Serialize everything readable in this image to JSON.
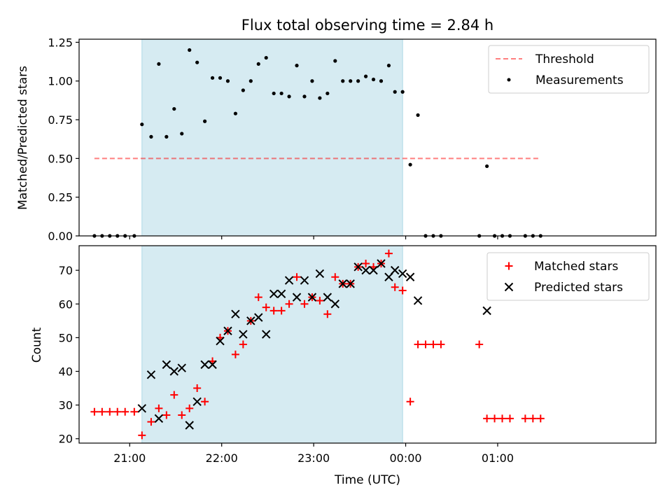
{
  "title": "Flux total observing time = 2.84 h",
  "colors": {
    "shade": "#add8e6",
    "threshold": "#ff0000",
    "matched": "#ff0000",
    "predicted": "#000000",
    "measurement": "#000000"
  },
  "chart_data": [
    {
      "type": "scatter",
      "ylabel": "Matched/Predicted stars",
      "ylim": [
        0,
        1.27
      ],
      "xlim_hours": [
        20.45,
        26.72
      ],
      "yticks": [
        0.0,
        0.25,
        0.5,
        0.75,
        1.0,
        1.25
      ],
      "ytick_labels": [
        "0.00",
        "0.25",
        "0.50",
        "0.75",
        "1.00",
        "1.25"
      ],
      "shaded_region": {
        "start": "21:08",
        "end": "23:58"
      },
      "legend": {
        "position": "top-right",
        "entries": [
          "Threshold",
          "Measurements"
        ]
      },
      "threshold": {
        "name": "Threshold",
        "y": 0.5,
        "x_start": "20:37",
        "x_end": "01:28",
        "style": "dashed"
      },
      "series": [
        {
          "name": "Measurements",
          "marker": "dot",
          "x": [
            "20:37",
            "20:42",
            "20:47",
            "20:52",
            "20:57",
            "21:03",
            "21:08",
            "21:14",
            "21:19",
            "21:24",
            "21:29",
            "21:34",
            "21:39",
            "21:44",
            "21:49",
            "21:54",
            "21:59",
            "22:04",
            "22:09",
            "22:14",
            "22:19",
            "22:24",
            "22:29",
            "22:34",
            "22:39",
            "22:44",
            "22:49",
            "22:54",
            "22:59",
            "23:04",
            "23:09",
            "23:14",
            "23:19",
            "23:24",
            "23:29",
            "23:34",
            "23:39",
            "23:44",
            "23:49",
            "23:53",
            "23:58",
            "00:03",
            "00:08",
            "00:13",
            "00:18",
            "00:23",
            "00:48",
            "00:53",
            "00:58",
            "01:03",
            "01:08",
            "01:18",
            "01:23",
            "01:28"
          ],
          "y": [
            0,
            0,
            0,
            0,
            0,
            0,
            0.72,
            0.64,
            1.11,
            0.64,
            0.82,
            0.66,
            1.2,
            1.12,
            0.74,
            1.02,
            1.02,
            1.0,
            0.79,
            0.94,
            1.0,
            1.11,
            1.15,
            0.92,
            0.92,
            0.9,
            1.1,
            0.9,
            1.0,
            0.89,
            0.92,
            1.13,
            1.0,
            1.0,
            1.0,
            1.03,
            1.01,
            1.0,
            1.1,
            0.93,
            0.93,
            0.46,
            0.78,
            0,
            0,
            0,
            0,
            0.45,
            0,
            0,
            0,
            0,
            0,
            0
          ]
        }
      ]
    },
    {
      "type": "scatter",
      "xlabel": "Time (UTC)",
      "ylabel": "Count",
      "ylim": [
        18.7,
        77.3
      ],
      "xlim_hours": [
        20.45,
        26.72
      ],
      "yticks": [
        20,
        30,
        40,
        50,
        60,
        70
      ],
      "xticks": [
        "21:00",
        "22:00",
        "23:00",
        "00:00",
        "01:00"
      ],
      "shaded_region": {
        "start": "21:08",
        "end": "23:58"
      },
      "legend": {
        "position": "top-right",
        "entries": [
          "Matched stars",
          "Predicted stars"
        ]
      },
      "series": [
        {
          "name": "Matched stars",
          "marker": "plus",
          "x": [
            "20:37",
            "20:42",
            "20:47",
            "20:52",
            "20:57",
            "21:03",
            "21:08",
            "21:14",
            "21:19",
            "21:24",
            "21:29",
            "21:34",
            "21:39",
            "21:44",
            "21:49",
            "21:54",
            "21:59",
            "22:04",
            "22:09",
            "22:14",
            "22:19",
            "22:24",
            "22:29",
            "22:34",
            "22:39",
            "22:44",
            "22:49",
            "22:54",
            "22:59",
            "23:04",
            "23:09",
            "23:14",
            "23:19",
            "23:24",
            "23:29",
            "23:34",
            "23:39",
            "23:44",
            "23:49",
            "23:53",
            "23:58",
            "00:03",
            "00:08",
            "00:13",
            "00:18",
            "00:23",
            "00:48",
            "00:53",
            "00:58",
            "01:03",
            "01:08",
            "01:18",
            "01:23",
            "01:28"
          ],
          "y": [
            28,
            28,
            28,
            28,
            28,
            28,
            21,
            25,
            29,
            27,
            33,
            27,
            29,
            35,
            31,
            43,
            50,
            52,
            45,
            48,
            55,
            62,
            59,
            58,
            58,
            60,
            68,
            60,
            62,
            61,
            57,
            68,
            66,
            66,
            71,
            72,
            71,
            72,
            75,
            65,
            64,
            31,
            48,
            48,
            48,
            48,
            48,
            26,
            26,
            26,
            26,
            26,
            26,
            26
          ]
        },
        {
          "name": "Predicted stars",
          "marker": "x",
          "x": [
            "21:08",
            "21:14",
            "21:19",
            "21:24",
            "21:29",
            "21:34",
            "21:39",
            "21:44",
            "21:49",
            "21:54",
            "21:59",
            "22:04",
            "22:09",
            "22:14",
            "22:19",
            "22:24",
            "22:29",
            "22:34",
            "22:39",
            "22:44",
            "22:49",
            "22:54",
            "22:59",
            "23:04",
            "23:09",
            "23:14",
            "23:19",
            "23:24",
            "23:29",
            "23:34",
            "23:39",
            "23:44",
            "23:49",
            "23:53",
            "23:58",
            "00:03",
            "00:08",
            "00:53"
          ],
          "y": [
            29,
            39,
            26,
            42,
            40,
            41,
            24,
            31,
            42,
            42,
            49,
            52,
            57,
            51,
            55,
            56,
            51,
            63,
            63,
            67,
            62,
            67,
            62,
            69,
            62,
            60,
            66,
            66,
            71,
            70,
            70,
            72,
            68,
            70,
            69,
            68,
            61,
            58
          ]
        }
      ]
    }
  ]
}
